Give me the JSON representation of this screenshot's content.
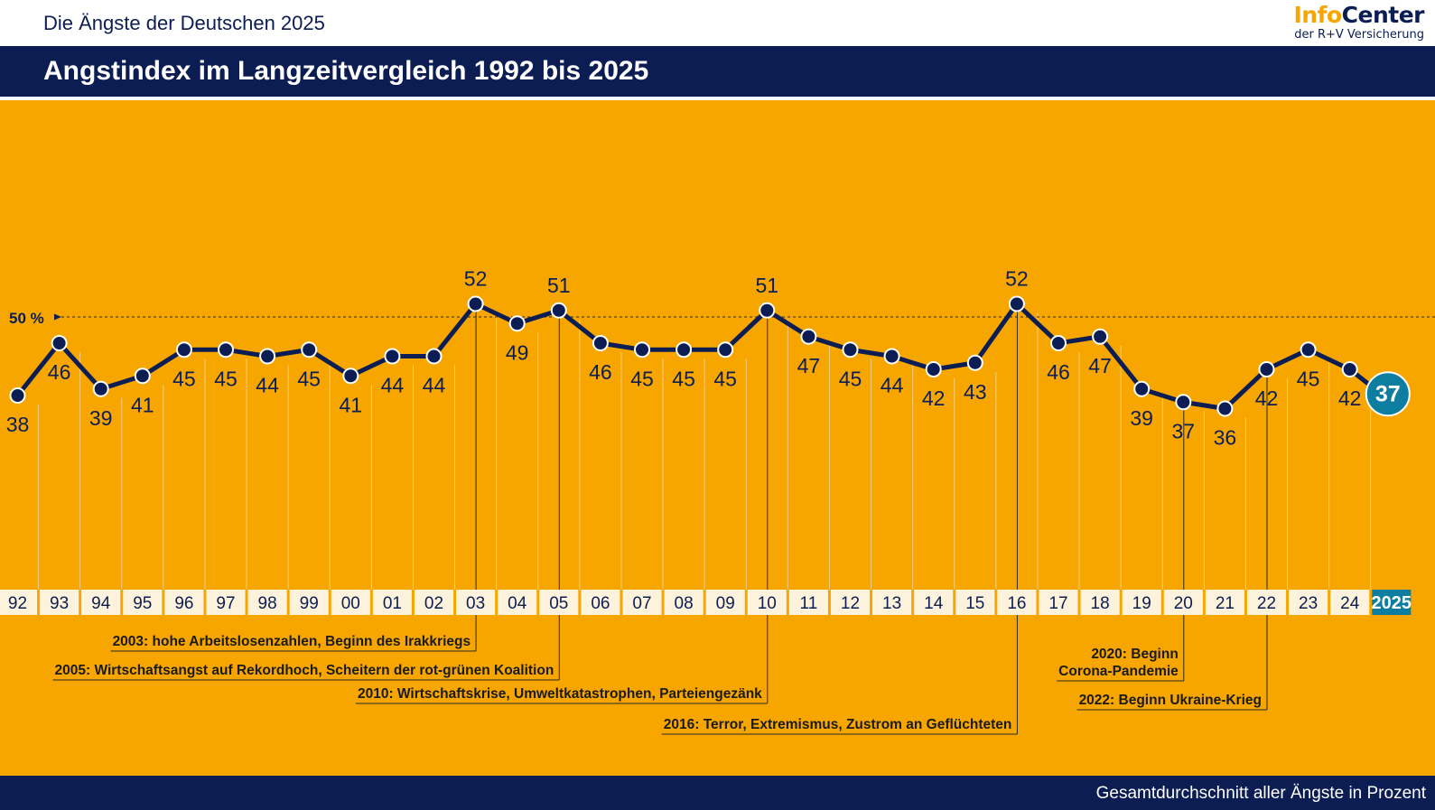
{
  "header": {
    "supertitle": "Die Ängste der Deutschen 2025",
    "title": "Angstindex im Langzeitvergleich 1992 bis 2025",
    "footer": "Gesamtdurchschnitt aller Ängste in Prozent"
  },
  "logo": {
    "info": "Info",
    "center": "Center",
    "sub": "der R+V Versicherung"
  },
  "colors": {
    "background": "#f7a600",
    "navy": "#0b1d53",
    "highlight": "#0d7ea0",
    "tick_bg": "#fdf2dc"
  },
  "chart_data": {
    "type": "line",
    "x": [
      "92",
      "93",
      "94",
      "95",
      "96",
      "97",
      "98",
      "99",
      "00",
      "01",
      "02",
      "03",
      "04",
      "05",
      "06",
      "07",
      "08",
      "09",
      "10",
      "11",
      "12",
      "13",
      "14",
      "15",
      "16",
      "17",
      "18",
      "19",
      "20",
      "21",
      "22",
      "23",
      "24",
      "2025"
    ],
    "values": [
      38,
      46,
      39,
      41,
      45,
      45,
      44,
      45,
      41,
      44,
      44,
      52,
      49,
      51,
      46,
      45,
      45,
      45,
      51,
      47,
      45,
      44,
      42,
      43,
      52,
      46,
      47,
      39,
      37,
      36,
      42,
      45,
      42,
      37
    ],
    "reference_line": {
      "value": 50,
      "label": "50 %"
    },
    "highlight_last": true,
    "annotations": [
      {
        "x": "03",
        "text": "2003: hohe Arbeitslosenzahlen, Beginn des Irakkriegs"
      },
      {
        "x": "05",
        "text": "2005: Wirtschaftsangst auf Rekordhoch, Scheitern der rot-grünen Koalition"
      },
      {
        "x": "10",
        "text": "2010: Wirtschaftskrise, Umweltkatastrophen, Parteiengezänk"
      },
      {
        "x": "16",
        "text": "2016: Terror, Extremismus, Zustrom an Geflüchteten"
      },
      {
        "x": "20",
        "text": "2020: Beginn\nCorona-Pandemie"
      },
      {
        "x": "22",
        "text": "2022: Beginn Ukraine-Krieg"
      }
    ]
  }
}
